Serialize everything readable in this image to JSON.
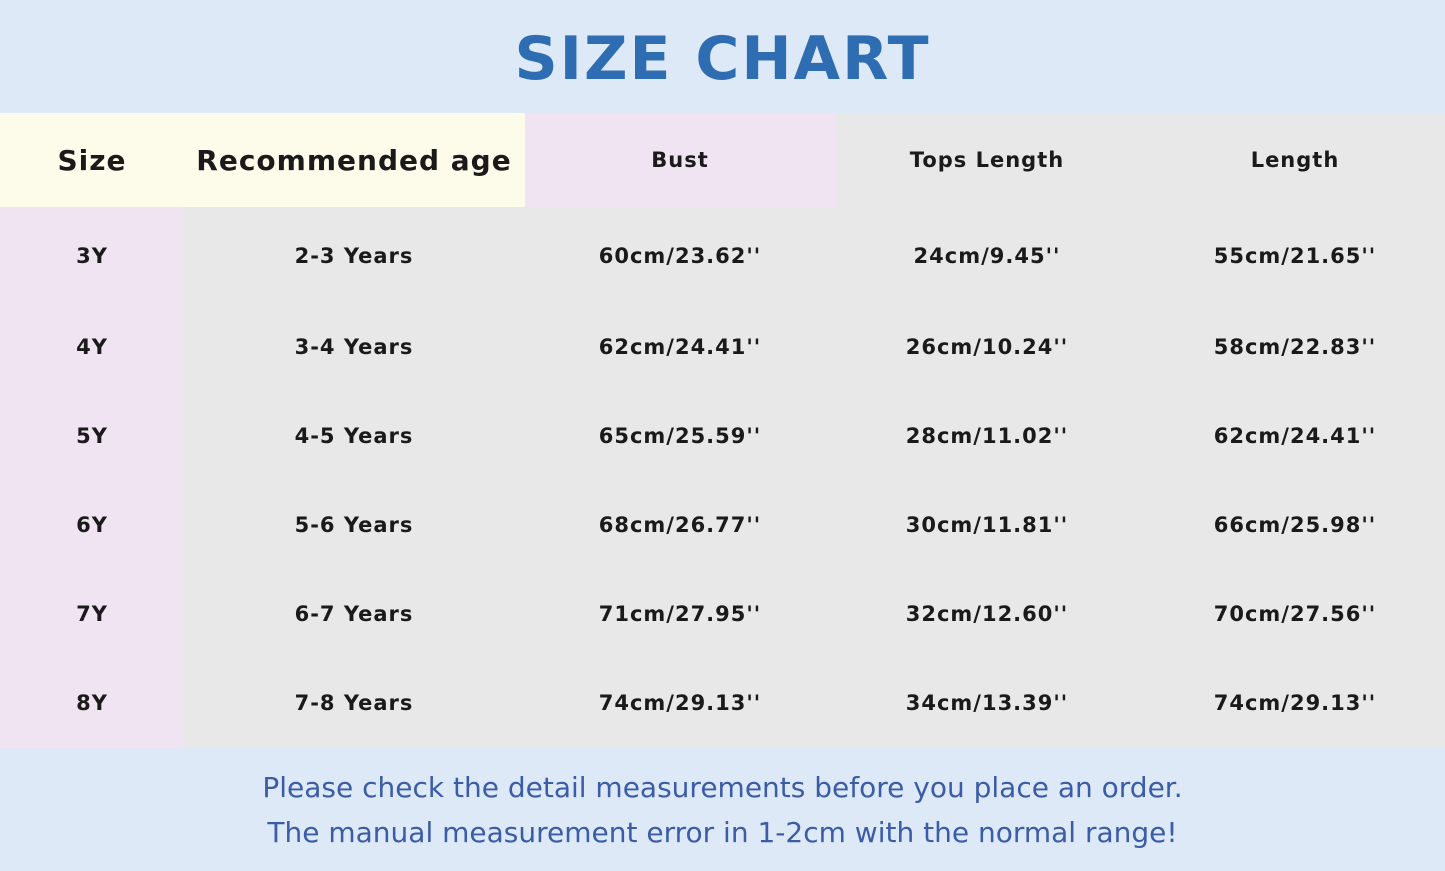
{
  "title": "SIZE CHART",
  "colors": {
    "title": "#2f6db3",
    "band": "#dde9f6",
    "cream": "#fdfbea",
    "pink": "#f0e4f2",
    "gray": "#e8e8e8",
    "footer_text": "#3b5ca6"
  },
  "table": {
    "headers": [
      "Size",
      "Recommended age",
      "Bust",
      "Tops Length",
      "Length"
    ],
    "rows": [
      [
        "3Y",
        "2-3 Years",
        "60cm/23.62''",
        "24cm/9.45''",
        "55cm/21.65''"
      ],
      [
        "4Y",
        "3-4 Years",
        "62cm/24.41''",
        "26cm/10.24''",
        "58cm/22.83''"
      ],
      [
        "5Y",
        "4-5 Years",
        "65cm/25.59''",
        "28cm/11.02''",
        "62cm/24.41''"
      ],
      [
        "6Y",
        "5-6 Years",
        "68cm/26.77''",
        "30cm/11.81''",
        "66cm/25.98''"
      ],
      [
        "7Y",
        "6-7 Years",
        "71cm/27.95''",
        "32cm/12.60''",
        "70cm/27.56''"
      ],
      [
        "8Y",
        "7-8 Years",
        "74cm/29.13''",
        "34cm/13.39''",
        "74cm/29.13''"
      ]
    ]
  },
  "footer": {
    "line1": "Please check the detail measurements before you place an order.",
    "line2": "The manual measurement error in 1-2cm with the normal range!"
  }
}
